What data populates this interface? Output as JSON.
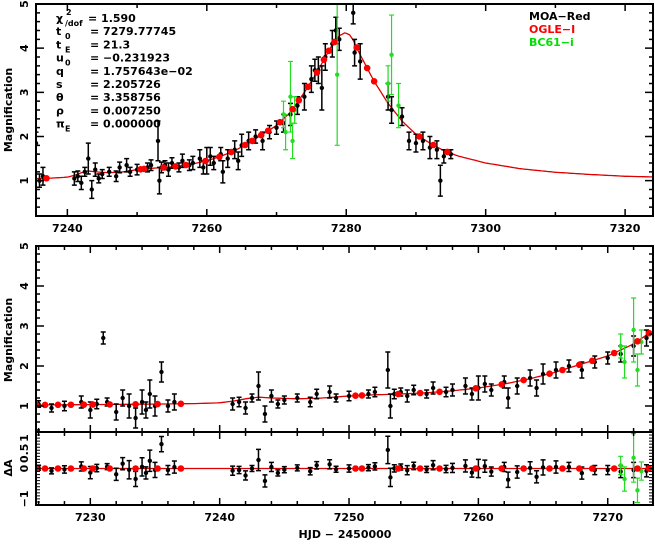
{
  "chart_data": [
    {
      "type": "scatter",
      "panel": "top",
      "title": "",
      "xlabel": "",
      "ylabel": "Magnification",
      "xlim": [
        7235.5,
        7324
      ],
      "ylim": [
        0.2,
        5
      ],
      "xticks": [
        7240,
        7260,
        7280,
        7300,
        7320
      ],
      "yticks": [
        1,
        2,
        3,
        4,
        5
      ],
      "grid": false,
      "legend_position": "top-right"
    },
    {
      "type": "scatter",
      "panel": "bottom",
      "xlabel": "HJD − 2450000",
      "ylabel": "Magnification",
      "xlim": [
        7225.8,
        7273.5
      ],
      "ylim": [
        0.35,
        5
      ],
      "xticks": [
        7230,
        7240,
        7250,
        7260,
        7270
      ],
      "yticks": [
        1,
        2,
        3,
        4,
        5
      ],
      "residual_ylabel": "ΔA",
      "residual_ylim": [
        -1.2,
        1.2
      ],
      "residual_yticks": [
        "−1",
        "0",
        "0.5",
        "1"
      ],
      "residual_ytick_values": [
        -1,
        0,
        0.5,
        1
      ]
    }
  ],
  "parameters": [
    {
      "sym": "χ",
      "sup": "2",
      "sub": "/dof",
      "value": "= 1.590"
    },
    {
      "sym": "t",
      "sub": "0",
      "value": "= 7279.77745"
    },
    {
      "sym": "t",
      "sub": "E",
      "value": "= 21.3"
    },
    {
      "sym": "u",
      "sub": "0",
      "value": "= −0.231923"
    },
    {
      "sym": "q",
      "value": "= 1.757643e−02"
    },
    {
      "sym": "s",
      "value": "= 2.205726"
    },
    {
      "sym": "θ",
      "value": "= 3.358756"
    },
    {
      "sym": "ρ",
      "value": "= 0.007250"
    },
    {
      "sym": "π",
      "sub": "E",
      "value": "= 0.000000"
    }
  ],
  "legend": [
    {
      "label": "MOA−Red",
      "color": "#000000"
    },
    {
      "label": "OGLE−I",
      "color": "#ff0000"
    },
    {
      "label": "BC61−i",
      "color": "#00dd00"
    }
  ],
  "colors": {
    "model": "#dd0000",
    "moa": "#000000",
    "ogle": "#ff0000",
    "bc61": "#22dd22"
  },
  "model_curve": [
    [
      7224,
      1.02
    ],
    [
      7228,
      1.03
    ],
    [
      7232,
      1.04
    ],
    [
      7236,
      1.05
    ],
    [
      7238,
      1.06
    ],
    [
      7240,
      1.08
    ],
    [
      7241,
      1.12
    ],
    [
      7242,
      1.18
    ],
    [
      7243,
      1.22
    ],
    [
      7244,
      1.2
    ],
    [
      7246,
      1.18
    ],
    [
      7248,
      1.2
    ],
    [
      7250,
      1.25
    ],
    [
      7252,
      1.28
    ],
    [
      7254,
      1.3
    ],
    [
      7256,
      1.33
    ],
    [
      7258,
      1.38
    ],
    [
      7260,
      1.45
    ],
    [
      7262,
      1.55
    ],
    [
      7264,
      1.68
    ],
    [
      7266,
      1.85
    ],
    [
      7268,
      2.05
    ],
    [
      7270,
      2.25
    ],
    [
      7272,
      2.55
    ],
    [
      7274,
      3.0
    ],
    [
      7276,
      3.5
    ],
    [
      7277,
      3.8
    ],
    [
      7278,
      4.08
    ],
    [
      7279,
      4.28
    ],
    [
      7279.8,
      4.35
    ],
    [
      7280.5,
      4.3
    ],
    [
      7281,
      4.18
    ],
    [
      7282,
      3.85
    ],
    [
      7284,
      3.25
    ],
    [
      7286,
      2.75
    ],
    [
      7288,
      2.35
    ],
    [
      7290,
      2.05
    ],
    [
      7292,
      1.85
    ],
    [
      7294,
      1.68
    ],
    [
      7296,
      1.56
    ],
    [
      7300,
      1.4
    ],
    [
      7305,
      1.27
    ],
    [
      7310,
      1.19
    ],
    [
      7315,
      1.14
    ],
    [
      7320,
      1.1
    ],
    [
      7325,
      1.08
    ]
  ],
  "moa": [
    [
      7225.5,
      1.0,
      0.1
    ],
    [
      7226,
      1.05,
      0.08
    ],
    [
      7227,
      0.95,
      0.1
    ],
    [
      7228,
      1.0,
      0.12
    ],
    [
      7229.3,
      1.1,
      0.15
    ],
    [
      7230,
      0.9,
      0.2
    ],
    [
      7230.5,
      1.05,
      0.12
    ],
    [
      7231,
      2.7,
      0.15
    ],
    [
      7231.3,
      1.1,
      0.1
    ],
    [
      7232,
      0.85,
      0.2
    ],
    [
      7232.5,
      1.2,
      0.2
    ],
    [
      7233,
      1.0,
      0.3
    ],
    [
      7233.5,
      0.7,
      0.25
    ],
    [
      7234,
      1.1,
      0.3
    ],
    [
      7234.3,
      0.9,
      0.2
    ],
    [
      7234.6,
      1.3,
      0.35
    ],
    [
      7235,
      1.0,
      0.25
    ],
    [
      7235.5,
      1.85,
      0.25
    ],
    [
      7236,
      1.0,
      0.15
    ],
    [
      7236.5,
      1.1,
      0.2
    ],
    [
      7241,
      1.05,
      0.15
    ],
    [
      7241.5,
      1.1,
      0.12
    ],
    [
      7242,
      0.95,
      0.15
    ],
    [
      7242.5,
      1.2,
      0.1
    ],
    [
      7243,
      1.5,
      0.35
    ],
    [
      7243.5,
      0.8,
      0.2
    ],
    [
      7244,
      1.25,
      0.15
    ],
    [
      7244.5,
      1.05,
      0.1
    ],
    [
      7245,
      1.15,
      0.1
    ],
    [
      7246,
      1.2,
      0.1
    ],
    [
      7247,
      1.1,
      0.12
    ],
    [
      7247.5,
      1.3,
      0.12
    ],
    [
      7248.5,
      1.35,
      0.15
    ],
    [
      7249,
      1.2,
      0.1
    ],
    [
      7250,
      1.25,
      0.12
    ],
    [
      7251.5,
      1.3,
      0.1
    ],
    [
      7252,
      1.35,
      0.12
    ],
    [
      7253,
      1.9,
      0.45
    ],
    [
      7253.2,
      1.0,
      0.3
    ],
    [
      7253.5,
      1.3,
      0.12
    ],
    [
      7254,
      1.35,
      0.1
    ],
    [
      7254.5,
      1.25,
      0.15
    ],
    [
      7255,
      1.4,
      0.12
    ],
    [
      7256,
      1.3,
      0.1
    ],
    [
      7256.5,
      1.45,
      0.15
    ],
    [
      7257.5,
      1.35,
      0.12
    ],
    [
      7258,
      1.4,
      0.15
    ],
    [
      7259,
      1.5,
      0.2
    ],
    [
      7259.5,
      1.3,
      0.15
    ],
    [
      7260,
      1.45,
      0.3
    ],
    [
      7260.5,
      1.55,
      0.2
    ],
    [
      7261,
      1.4,
      0.15
    ],
    [
      7262,
      1.6,
      0.15
    ],
    [
      7262.3,
      1.2,
      0.25
    ],
    [
      7263,
      1.5,
      0.2
    ],
    [
      7264,
      1.7,
      0.2
    ],
    [
      7264.5,
      1.45,
      0.2
    ],
    [
      7265,
      1.8,
      0.25
    ],
    [
      7266,
      1.9,
      0.2
    ],
    [
      7267,
      2.0,
      0.15
    ],
    [
      7268,
      1.9,
      0.2
    ],
    [
      7269,
      2.1,
      0.15
    ],
    [
      7270,
      2.2,
      0.15
    ],
    [
      7271,
      2.3,
      0.2
    ],
    [
      7272,
      2.5,
      0.25
    ],
    [
      7273,
      2.7,
      0.2
    ],
    [
      7274,
      2.9,
      0.3
    ],
    [
      7275,
      3.3,
      0.3
    ],
    [
      7275.5,
      3.5,
      0.25
    ],
    [
      7276,
      3.5,
      0.3
    ],
    [
      7276.5,
      3.1,
      0.5
    ],
    [
      7277,
      3.8,
      0.3
    ],
    [
      7278,
      4.1,
      0.3
    ],
    [
      7278.5,
      4.4,
      0.3
    ],
    [
      7279,
      4.2,
      0.25
    ],
    [
      7281,
      4.8,
      0.25
    ],
    [
      7281.2,
      3.9,
      0.3
    ],
    [
      7282,
      3.7,
      0.4
    ],
    [
      7286,
      2.9,
      0.3
    ],
    [
      7286.5,
      2.6,
      0.3
    ],
    [
      7288,
      2.45,
      0.2
    ],
    [
      7289,
      1.9,
      0.2
    ],
    [
      7290,
      1.85,
      0.2
    ],
    [
      7291,
      1.9,
      0.2
    ],
    [
      7292,
      1.75,
      0.25
    ],
    [
      7293,
      1.7,
      0.2
    ],
    [
      7293.5,
      1.0,
      0.35
    ],
    [
      7294,
      1.55,
      0.15
    ],
    [
      7295,
      1.6,
      0.1
    ]
  ],
  "ogle": [
    7225.8,
    7226.5,
    7227.5,
    7228.5,
    7229.5,
    7230.2,
    7231.5,
    7233.5,
    7235.2,
    7237,
    7250.5,
    7251,
    7253.8,
    7255.5,
    7257,
    7259.8,
    7261.8,
    7263.5,
    7265.5,
    7266.5,
    7267.8,
    7268.8,
    7270.5,
    7272.3,
    7273.2,
    7274.5,
    7275.8,
    7276.8,
    7277.5,
    7278.3,
    7281.5,
    7283,
    7284,
    7290.5,
    7292.5,
    7294.5
  ],
  "bc61": [
    [
      7271,
      2.5,
      0.3
    ],
    [
      7271.3,
      2.1,
      0.4
    ],
    [
      7272,
      2.9,
      0.8
    ],
    [
      7272.6,
      2.6,
      0.3
    ],
    [
      7272.3,
      1.9,
      0.4
    ],
    [
      7278.7,
      3.4,
      1.6
    ],
    [
      7286,
      3.2,
      0.4
    ],
    [
      7286.5,
      3.85,
      0.9
    ],
    [
      7287.5,
      2.7,
      0.5
    ]
  ]
}
